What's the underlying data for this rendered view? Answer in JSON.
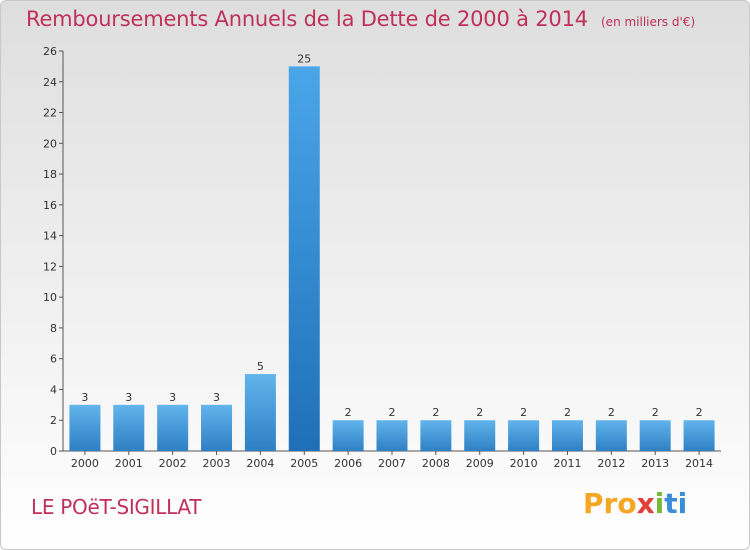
{
  "header": {
    "title": "Remboursements Annuels de la Dette de 2000 à 2014",
    "subtitle": "(en milliers d'€)"
  },
  "footer": {
    "town": "LE POëT-SIGILLAT",
    "logo_parts": [
      "Pro",
      "x",
      "i",
      "ti"
    ]
  },
  "colors": {
    "title": "#c0305a",
    "bar_light": "#62b4ec",
    "bar_dark": "#2f7fc4",
    "highlight_light": "#4aa6e8",
    "highlight_dark": "#1f6fb8"
  },
  "chart_data": {
    "type": "bar",
    "title": "Remboursements Annuels de la Dette de 2000 à 2014",
    "subtitle": "(en milliers d'€)",
    "categories": [
      "2000",
      "2001",
      "2002",
      "2003",
      "2004",
      "2005",
      "2006",
      "2007",
      "2008",
      "2009",
      "2010",
      "2011",
      "2012",
      "2013",
      "2014"
    ],
    "values": [
      3,
      3,
      3,
      3,
      5,
      25,
      2,
      2,
      2,
      2,
      2,
      2,
      2,
      2,
      2
    ],
    "data_labels": [
      "3",
      "3",
      "3",
      "3",
      "5",
      "25",
      "2",
      "2",
      "2",
      "2",
      "2",
      "2",
      "2",
      "2",
      "2"
    ],
    "highlight_category": "2005",
    "ylim": [
      0,
      26
    ],
    "yticks": [
      0,
      2,
      4,
      6,
      8,
      10,
      12,
      14,
      16,
      18,
      20,
      22,
      24,
      26
    ],
    "grid": false,
    "legend": "none"
  }
}
